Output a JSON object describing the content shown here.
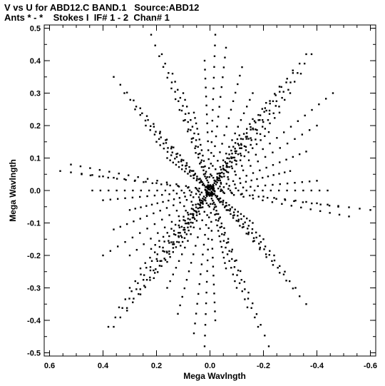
{
  "chart_data": {
    "type": "scatter",
    "title": "V vs U for ABD12.C BAND.1   Source:ABD12",
    "subtitle": "Ants * - *    Stokes I  IF# 1 - 2  Chan# 1",
    "xlabel": "Mega Wavlngth",
    "ylabel": "Mega Wavlngth",
    "xlim": [
      0.62,
      -0.62
    ],
    "ylim": [
      -0.51,
      0.51
    ],
    "x_ticks": [
      0.6,
      0.4,
      0.2,
      0.0,
      -0.2,
      -0.4,
      -0.6
    ],
    "x_tick_labels": [
      "0.6",
      "0.4",
      "0.2",
      "0.0",
      "-0.2",
      "-0.4",
      "-0.6"
    ],
    "y_ticks": [
      0.5,
      0.4,
      0.3,
      0.2,
      0.1,
      0.0,
      -0.1,
      -0.2,
      -0.3,
      -0.4,
      -0.5
    ],
    "y_tick_labels": [
      "0.5",
      "0.4",
      "0.3",
      "0.2",
      "0.1",
      "0.0",
      "-0.1",
      "-0.2",
      "-0.3",
      "-0.4",
      "-0.5"
    ],
    "grid": false,
    "marker_color": "#000000",
    "tracks": [
      {
        "start": [
          0.56,
          0.06
        ],
        "end": [
          -0.6,
          -0.06
        ]
      },
      {
        "start": [
          0.52,
          0.08
        ],
        "end": [
          -0.52,
          -0.08
        ]
      },
      {
        "start": [
          0.48,
          0.05
        ],
        "end": [
          -0.48,
          -0.05
        ]
      },
      {
        "start": [
          0.44,
          0.0
        ],
        "end": [
          -0.44,
          0.0
        ]
      },
      {
        "start": [
          0.4,
          -0.03
        ],
        "end": [
          -0.4,
          0.03
        ]
      },
      {
        "start": [
          0.36,
          0.35
        ],
        "end": [
          -0.36,
          -0.35
        ]
      },
      {
        "start": [
          0.32,
          0.3
        ],
        "end": [
          -0.32,
          -0.3
        ]
      },
      {
        "start": [
          0.28,
          0.25
        ],
        "end": [
          -0.28,
          -0.25
        ]
      },
      {
        "start": [
          0.24,
          0.2
        ],
        "end": [
          -0.24,
          -0.2
        ]
      },
      {
        "start": [
          0.2,
          0.15
        ],
        "end": [
          -0.2,
          -0.15
        ]
      },
      {
        "start": [
          0.16,
          0.1
        ],
        "end": [
          -0.16,
          -0.1
        ]
      },
      {
        "start": [
          0.36,
          -0.42
        ],
        "end": [
          -0.36,
          0.42
        ]
      },
      {
        "start": [
          0.31,
          -0.37
        ],
        "end": [
          -0.31,
          0.37
        ]
      },
      {
        "start": [
          0.26,
          -0.32
        ],
        "end": [
          -0.26,
          0.32
        ]
      },
      {
        "start": [
          0.21,
          -0.27
        ],
        "end": [
          -0.21,
          0.27
        ]
      },
      {
        "start": [
          0.16,
          -0.22
        ],
        "end": [
          -0.16,
          0.22
        ]
      },
      {
        "start": [
          0.11,
          -0.17
        ],
        "end": [
          -0.11,
          0.17
        ]
      },
      {
        "start": [
          0.22,
          0.48
        ],
        "end": [
          -0.22,
          -0.48
        ]
      },
      {
        "start": [
          0.18,
          0.42
        ],
        "end": [
          -0.18,
          -0.42
        ]
      },
      {
        "start": [
          0.14,
          0.36
        ],
        "end": [
          -0.14,
          -0.36
        ]
      },
      {
        "start": [
          0.1,
          0.3
        ],
        "end": [
          -0.1,
          -0.3
        ]
      },
      {
        "start": [
          0.06,
          0.24
        ],
        "end": [
          -0.06,
          -0.24
        ]
      },
      {
        "start": [
          -0.02,
          0.48
        ],
        "end": [
          0.02,
          -0.48
        ]
      },
      {
        "start": [
          -0.06,
          0.44
        ],
        "end": [
          0.06,
          -0.44
        ]
      },
      {
        "start": [
          0.02,
          0.4
        ],
        "end": [
          -0.02,
          -0.4
        ]
      },
      {
        "start": [
          -0.12,
          0.38
        ],
        "end": [
          0.12,
          -0.38
        ]
      },
      {
        "start": [
          -0.16,
          0.3
        ],
        "end": [
          0.16,
          -0.3
        ]
      },
      {
        "start": [
          -0.38,
          0.42
        ],
        "end": [
          0.38,
          -0.42
        ]
      },
      {
        "start": [
          -0.34,
          0.36
        ],
        "end": [
          0.34,
          -0.36
        ]
      },
      {
        "start": [
          -0.3,
          0.3
        ],
        "end": [
          0.3,
          -0.3
        ]
      },
      {
        "start": [
          -0.26,
          0.24
        ],
        "end": [
          0.26,
          -0.24
        ]
      },
      {
        "start": [
          -0.22,
          0.18
        ],
        "end": [
          0.22,
          -0.18
        ]
      },
      {
        "start": [
          -0.46,
          0.3
        ],
        "end": [
          0.3,
          -0.2
        ]
      },
      {
        "start": [
          -0.4,
          0.2
        ],
        "end": [
          0.4,
          -0.2
        ]
      },
      {
        "start": [
          -0.36,
          0.12
        ],
        "end": [
          0.36,
          -0.12
        ]
      },
      {
        "start": [
          -0.3,
          0.06
        ],
        "end": [
          0.3,
          -0.06
        ]
      }
    ],
    "points_per_track": 30
  }
}
